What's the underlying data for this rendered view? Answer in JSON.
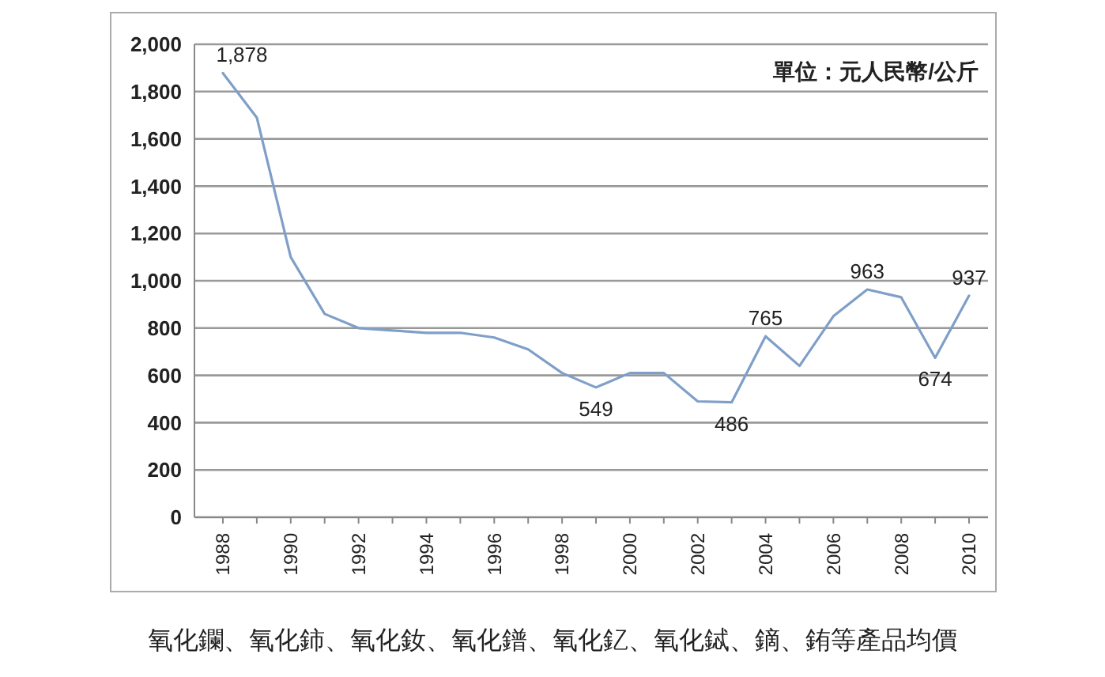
{
  "chart_data": {
    "type": "line",
    "categories": [
      "1988",
      null,
      "1990",
      null,
      "1992",
      null,
      "1994",
      null,
      "1996",
      null,
      "1998",
      null,
      "2000",
      null,
      "2002",
      null,
      "2004",
      null,
      "2006",
      null,
      "2008",
      null,
      "2010"
    ],
    "series": [
      {
        "color": "#7f9fc8",
        "values": [
          1878,
          1690,
          1100,
          860,
          800,
          790,
          780,
          780,
          760,
          710,
          610,
          549,
          610,
          610,
          490,
          486,
          765,
          640,
          850,
          963,
          930,
          674,
          937
        ],
        "value_labels": [
          "1,878",
          null,
          null,
          null,
          null,
          null,
          null,
          null,
          null,
          null,
          null,
          "549",
          null,
          null,
          null,
          "486",
          "765",
          null,
          null,
          "963",
          null,
          "674",
          "937"
        ]
      }
    ],
    "ylim": [
      0,
      2000
    ],
    "yticks": [
      0,
      {
        "value": 200,
        "label": "200"
      },
      {
        "value": 400,
        "label": "400"
      },
      {
        "value": 600,
        "label": "600"
      },
      {
        "value": 800,
        "label": "800"
      },
      {
        "value": 1000,
        "label": "1,000"
      },
      {
        "value": 1200,
        "label": "1,200"
      },
      {
        "value": 1400,
        "label": "1,400"
      },
      {
        "value": 1600,
        "label": "1,600"
      },
      {
        "value": 1800,
        "label": "1,800"
      },
      {
        "value": 2000,
        "label": "2,000"
      }
    ],
    "grid": "y",
    "marker": "none",
    "line_style": "solid",
    "annotations": [
      "單位：元人民幣/公斤",
      "氧化鑭、氧化鈰、氧化釹、氧化鐠、氧化釔、氧化鋱、鏑、銪等產品均價"
    ]
  }
}
